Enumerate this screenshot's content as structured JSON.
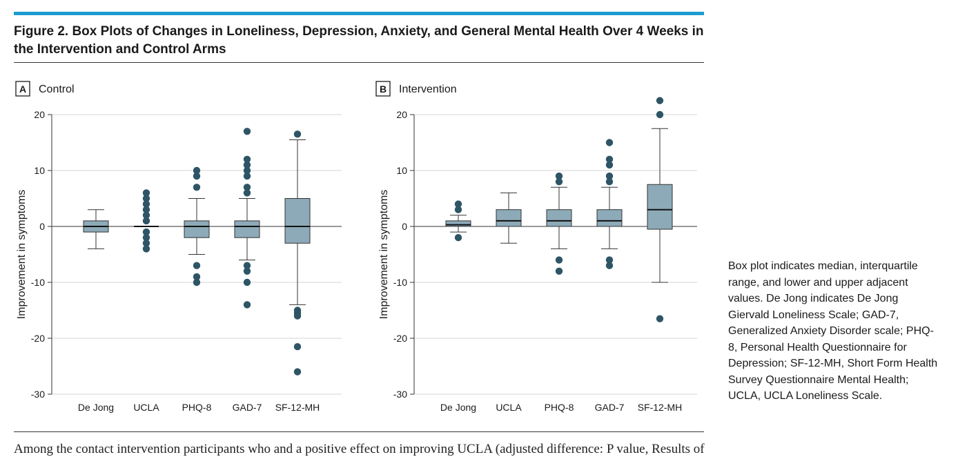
{
  "figure": {
    "title": "Figure 2. Box Plots of Changes in Loneliness, Depression, Anxiety, and General Mental Health Over 4 Weeks in the Intervention and Control Arms",
    "caption": "Box plot indicates median, interquartile range, and lower and upper adjacent values. De Jong indicates De Jong Giervald Loneliness Scale; GAD-7, Generalized Anxiety Disorder scale; PHQ-8, Personal Health Questionnaire for Depression; SF-12-MH, Short Form Health Survey Questionnaire Mental Health; UCLA, UCLA Loneliness Scale.",
    "bottom_text": "Among the contact intervention participants who and a positive effect on improving UCLA (adjusted difference: P value, Results of"
  },
  "colors": {
    "accent_rule": "#1e9ccf",
    "box_fill": "#8daab8",
    "outlier": "#2e5566",
    "grid": "#d4d4d4"
  },
  "chart_data": [
    {
      "type": "box",
      "panel_letter": "A",
      "panel_label": "Control",
      "ylabel": "Improvement in symptoms",
      "ylim": [
        -30,
        20
      ],
      "yticks": [
        20,
        10,
        0,
        -10,
        -20,
        -30
      ],
      "grid": true,
      "categories": [
        "De Jong",
        "UCLA",
        "PHQ-8",
        "GAD-7",
        "SF-12-MH"
      ],
      "boxes": [
        {
          "category": "De Jong",
          "q1": -1,
          "median": 0,
          "q3": 1,
          "whisker_low": -4,
          "whisker_high": 3,
          "outliers": []
        },
        {
          "category": "UCLA",
          "q1": 0,
          "median": 0,
          "q3": 0,
          "whisker_low": 0,
          "whisker_high": 0,
          "outliers": [
            6,
            5,
            4,
            3,
            2,
            1,
            -1,
            -2,
            -3,
            -4
          ]
        },
        {
          "category": "PHQ-8",
          "q1": -2,
          "median": 0,
          "q3": 1,
          "whisker_low": -5,
          "whisker_high": 5,
          "outliers": [
            10,
            9,
            7,
            -7,
            -9,
            -10
          ]
        },
        {
          "category": "GAD-7",
          "q1": -2,
          "median": 0,
          "q3": 1,
          "whisker_low": -6,
          "whisker_high": 5,
          "outliers": [
            17,
            12,
            11,
            10,
            9,
            7,
            6,
            -7,
            -8,
            -10,
            -14
          ]
        },
        {
          "category": "SF-12-MH",
          "q1": -3,
          "median": 0,
          "q3": 5,
          "whisker_low": -14,
          "whisker_high": 15.5,
          "outliers": [
            16.5,
            -15,
            -15.5,
            -16,
            -21.5,
            -26
          ]
        }
      ]
    },
    {
      "type": "box",
      "panel_letter": "B",
      "panel_label": "Intervention",
      "ylabel": "Improvement in symptoms",
      "ylim": [
        -30,
        20
      ],
      "yticks": [
        20,
        10,
        0,
        -10,
        -20,
        -30
      ],
      "grid": true,
      "categories": [
        "De Jong",
        "UCLA",
        "PHQ-8",
        "GAD-7",
        "SF-12-MH"
      ],
      "boxes": [
        {
          "category": "De Jong",
          "q1": 0,
          "median": 0.3,
          "q3": 1,
          "whisker_low": -1,
          "whisker_high": 2,
          "outliers": [
            4,
            3,
            -2
          ]
        },
        {
          "category": "UCLA",
          "q1": 0,
          "median": 1,
          "q3": 3,
          "whisker_low": -3,
          "whisker_high": 6,
          "outliers": []
        },
        {
          "category": "PHQ-8",
          "q1": 0,
          "median": 1,
          "q3": 3,
          "whisker_low": -4,
          "whisker_high": 7,
          "outliers": [
            9,
            8,
            -6,
            -8
          ]
        },
        {
          "category": "GAD-7",
          "q1": 0,
          "median": 1,
          "q3": 3,
          "whisker_low": -4,
          "whisker_high": 7,
          "outliers": [
            15,
            12,
            11,
            9,
            8,
            -6,
            -7
          ]
        },
        {
          "category": "SF-12-MH",
          "q1": -0.5,
          "median": 3,
          "q3": 7.5,
          "whisker_low": -10,
          "whisker_high": 17.5,
          "outliers": [
            22.5,
            20,
            -16.5
          ]
        }
      ]
    }
  ]
}
